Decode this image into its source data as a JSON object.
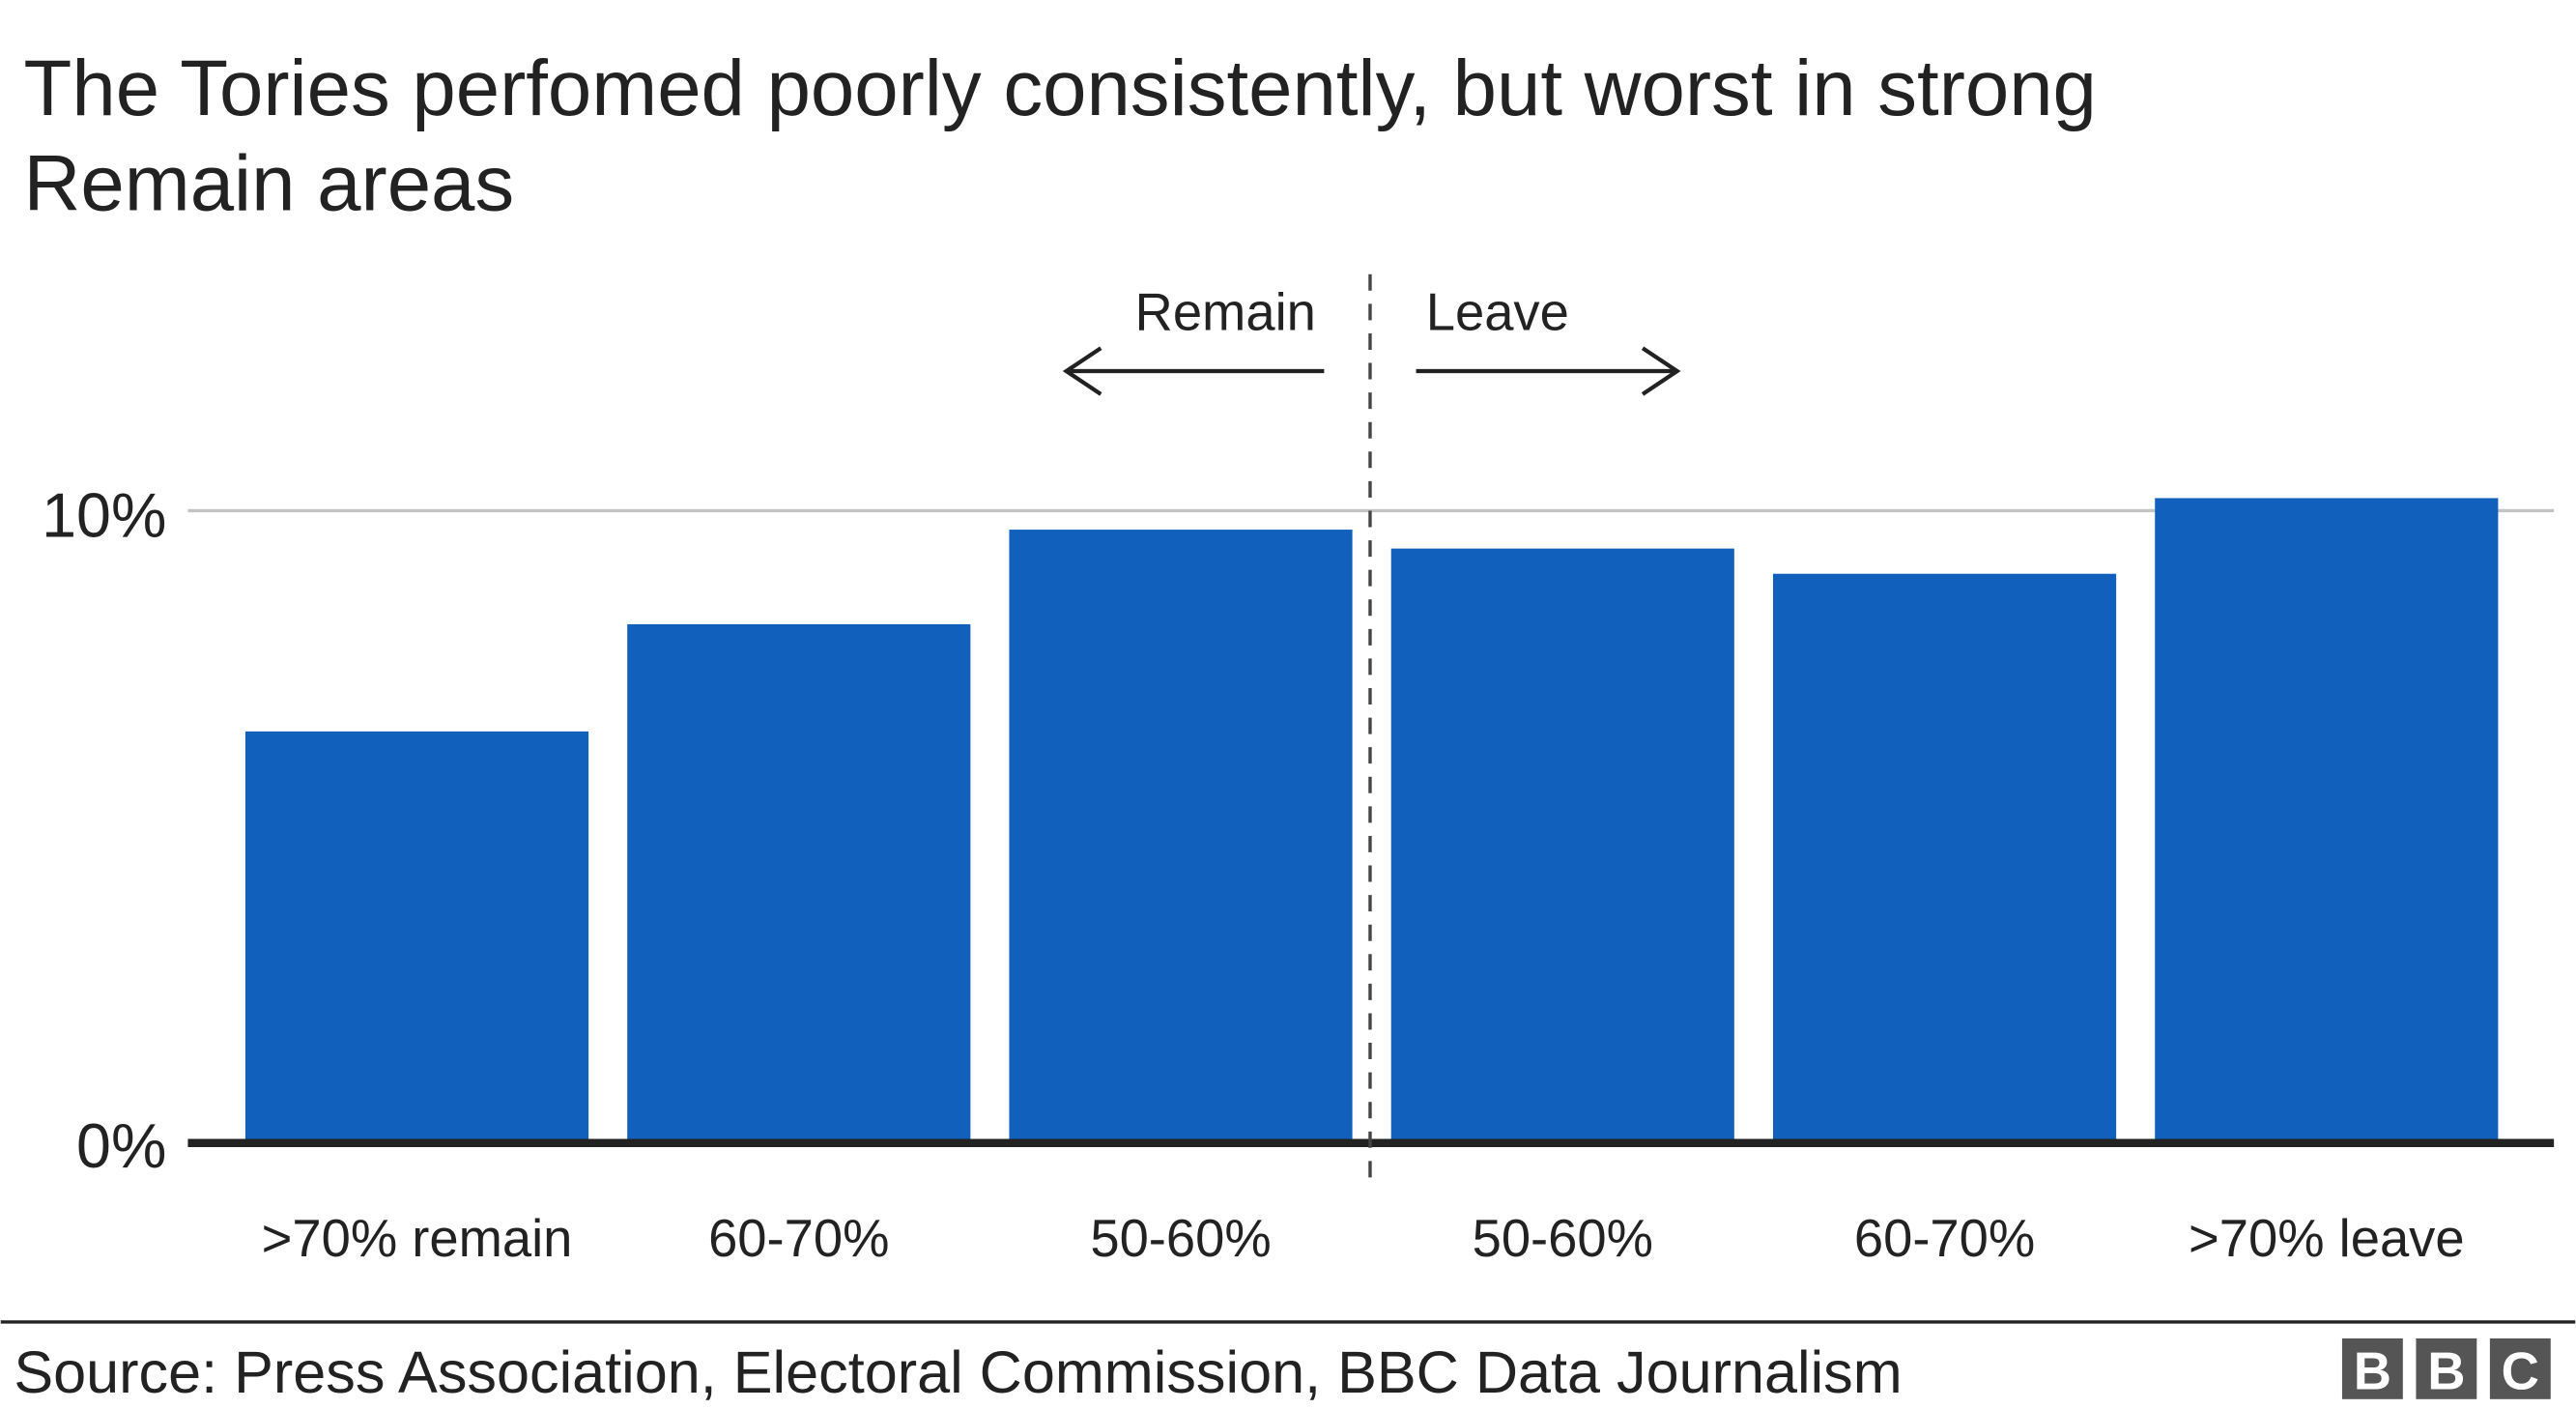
{
  "chart_data": {
    "type": "bar",
    "title": "The Tories perfomed poorly consistently, but worst in strong Remain areas",
    "title_lines": [
      "The Tories perfomed poorly consistently, but worst in strong",
      "Remain areas"
    ],
    "categories": [
      ">70% remain",
      "60-70%",
      "50-60%",
      "50-60%",
      "60-70%",
      ">70% leave"
    ],
    "values": [
      6.5,
      8.2,
      9.7,
      9.4,
      9.0,
      10.2
    ],
    "ylim": [
      0,
      10
    ],
    "yticks": [
      {
        "value": 0,
        "label": "0%"
      },
      {
        "value": 10,
        "label": "10%"
      }
    ],
    "grid": true,
    "bar_color": "#1160BC",
    "annotations": {
      "left_label": "Remain",
      "right_label": "Leave"
    }
  },
  "footer": {
    "source": "Source: Press Association, Electoral Commission, BBC Data Journalism",
    "logo": "BBC"
  }
}
